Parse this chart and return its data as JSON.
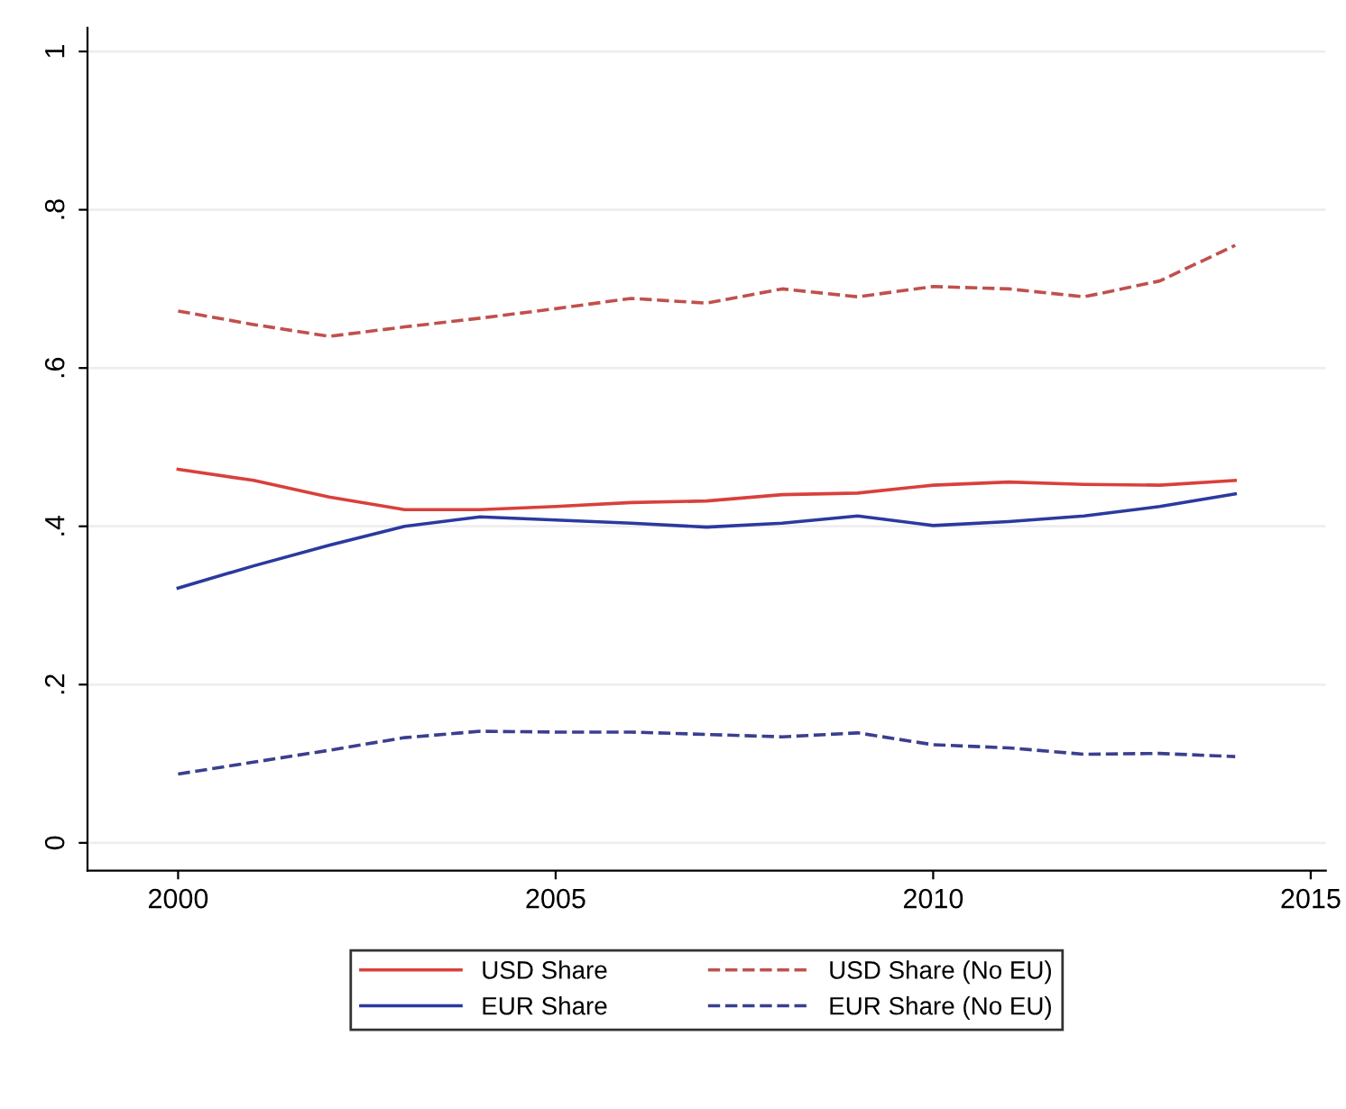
{
  "chart_data": {
    "type": "line",
    "x": [
      2000,
      2001,
      2002,
      2003,
      2004,
      2005,
      2006,
      2007,
      2008,
      2009,
      2010,
      2011,
      2012,
      2013,
      2014
    ],
    "series": [
      {
        "name": "USD Share",
        "color": "#d9403c",
        "line_style": "solid",
        "values": [
          0.472,
          0.458,
          0.437,
          0.421,
          0.421,
          0.425,
          0.43,
          0.432,
          0.44,
          0.442,
          0.452,
          0.456,
          0.453,
          0.452,
          0.458
        ]
      },
      {
        "name": "EUR Share",
        "color": "#2b3a9e",
        "line_style": "solid",
        "values": [
          0.322,
          0.35,
          0.376,
          0.4,
          0.412,
          0.408,
          0.404,
          0.399,
          0.404,
          0.413,
          0.401,
          0.406,
          0.413,
          0.425,
          0.441
        ]
      },
      {
        "name": "USD Share (No EU)",
        "color": "#c0504d",
        "line_style": "dashed",
        "values": [
          0.672,
          0.655,
          0.64,
          0.652,
          0.663,
          0.675,
          0.688,
          0.682,
          0.7,
          0.69,
          0.703,
          0.7,
          0.69,
          0.71,
          0.755
        ]
      },
      {
        "name": "EUR Share (No EU)",
        "color": "#3a3f8f",
        "line_style": "dashed",
        "values": [
          0.087,
          0.102,
          0.117,
          0.133,
          0.141,
          0.14,
          0.14,
          0.137,
          0.134,
          0.139,
          0.124,
          0.12,
          0.112,
          0.113,
          0.109
        ]
      }
    ],
    "xlim": [
      1998.8,
      2015.2
    ],
    "xticks": [
      2000,
      2005,
      2010,
      2015
    ],
    "ylim": [
      -0.035,
      1.03
    ],
    "yticks": [
      {
        "value": 0,
        "label": "0"
      },
      {
        "value": 0.2,
        "label": ".2"
      },
      {
        "value": 0.4,
        "label": ".4"
      },
      {
        "value": 0.6,
        "label": ".6"
      },
      {
        "value": 0.8,
        "label": ".8"
      },
      {
        "value": 1,
        "label": "1"
      }
    ],
    "grid": "y",
    "legend": "bottom",
    "marker": "none"
  }
}
